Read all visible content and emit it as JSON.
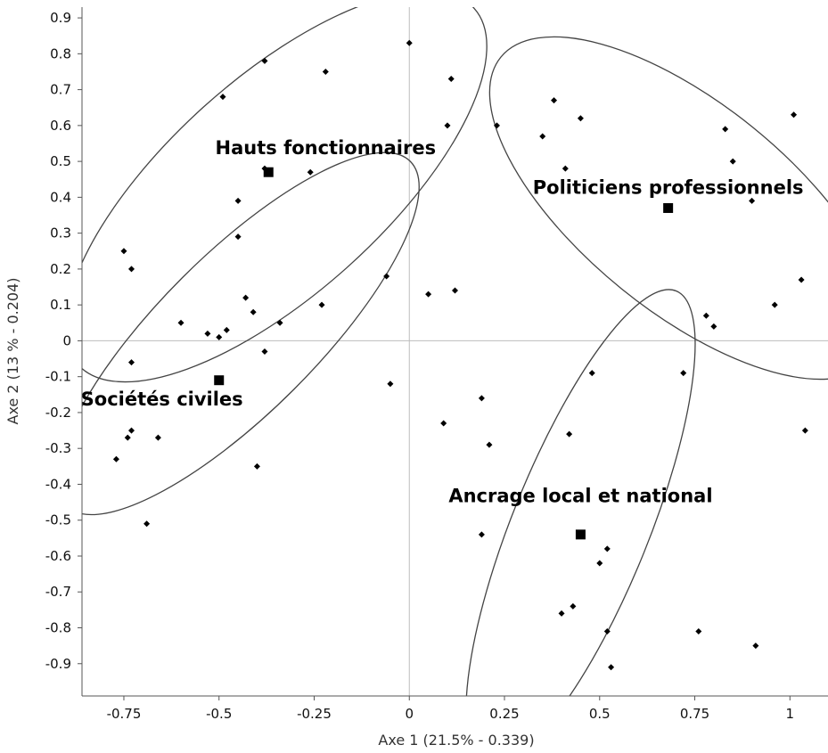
{
  "chart_data": {
    "type": "scatter",
    "title": "",
    "xlabel": "Axe 1 (21.5% - 0.339)",
    "ylabel": "Axe 2 (13 % - 0.204)",
    "xlim": [
      -0.86,
      1.1
    ],
    "ylim": [
      -0.99,
      0.93
    ],
    "grid": false,
    "zero_lines": true,
    "xticks": [
      {
        "v": -0.75,
        "label": "-0.75"
      },
      {
        "v": -0.5,
        "label": "-0.5"
      },
      {
        "v": -0.25,
        "label": "-0.25"
      },
      {
        "v": 0,
        "label": "0"
      },
      {
        "v": 0.25,
        "label": "0.25"
      },
      {
        "v": 0.5,
        "label": "0.5"
      },
      {
        "v": 0.75,
        "label": "0.75"
      },
      {
        "v": 1,
        "label": "1"
      }
    ],
    "yticks": [
      {
        "v": 0.9,
        "label": "0.9"
      },
      {
        "v": 0.8,
        "label": "0.8"
      },
      {
        "v": 0.7,
        "label": "0.7"
      },
      {
        "v": 0.6,
        "label": "0.6"
      },
      {
        "v": 0.5,
        "label": "0.5"
      },
      {
        "v": 0.4,
        "label": "0.4"
      },
      {
        "v": 0.3,
        "label": "0.3"
      },
      {
        "v": 0.2,
        "label": "0.2"
      },
      {
        "v": 0.1,
        "label": "0.1"
      },
      {
        "v": 0,
        "label": "0"
      },
      {
        "v": -0.1,
        "label": "-0.1"
      },
      {
        "v": -0.2,
        "label": "-0.2"
      },
      {
        "v": -0.3,
        "label": "-0.3"
      },
      {
        "v": -0.4,
        "label": "-0.4"
      },
      {
        "v": -0.5,
        "label": "-0.5"
      },
      {
        "v": -0.6,
        "label": "-0.6"
      },
      {
        "v": -0.7,
        "label": "-0.7"
      },
      {
        "v": -0.8,
        "label": "-0.8"
      },
      {
        "v": -0.9,
        "label": "-0.9"
      }
    ],
    "points": [
      [
        0.0,
        0.83
      ],
      [
        0.11,
        0.73
      ],
      [
        -0.38,
        0.78
      ],
      [
        -0.22,
        0.75
      ],
      [
        -0.49,
        0.68
      ],
      [
        0.1,
        0.6
      ],
      [
        0.23,
        0.6
      ],
      [
        0.38,
        0.67
      ],
      [
        0.45,
        0.62
      ],
      [
        0.35,
        0.57
      ],
      [
        0.41,
        0.48
      ],
      [
        0.83,
        0.59
      ],
      [
        1.01,
        0.63
      ],
      [
        0.85,
        0.5
      ],
      [
        0.9,
        0.39
      ],
      [
        -0.26,
        0.47
      ],
      [
        -0.38,
        0.48
      ],
      [
        -0.45,
        0.39
      ],
      [
        -0.45,
        0.29
      ],
      [
        -0.75,
        0.25
      ],
      [
        -0.73,
        0.2
      ],
      [
        -0.43,
        0.12
      ],
      [
        -0.41,
        0.08
      ],
      [
        -0.6,
        0.05
      ],
      [
        -0.53,
        0.02
      ],
      [
        -0.5,
        0.01
      ],
      [
        -0.48,
        0.03
      ],
      [
        -0.34,
        0.05
      ],
      [
        -0.23,
        0.1
      ],
      [
        -0.06,
        0.18
      ],
      [
        0.05,
        0.13
      ],
      [
        0.12,
        0.14
      ],
      [
        -0.38,
        -0.03
      ],
      [
        -0.73,
        -0.06
      ],
      [
        -0.05,
        -0.12
      ],
      [
        -0.73,
        -0.25
      ],
      [
        -0.74,
        -0.27
      ],
      [
        -0.66,
        -0.27
      ],
      [
        -0.77,
        -0.33
      ],
      [
        -0.69,
        -0.51
      ],
      [
        -0.4,
        -0.35
      ],
      [
        1.03,
        0.17
      ],
      [
        0.96,
        0.1
      ],
      [
        0.78,
        0.07
      ],
      [
        0.8,
        0.04
      ],
      [
        0.72,
        -0.09
      ],
      [
        0.48,
        -0.09
      ],
      [
        1.04,
        -0.25
      ],
      [
        0.19,
        -0.16
      ],
      [
        0.09,
        -0.23
      ],
      [
        0.21,
        -0.29
      ],
      [
        0.42,
        -0.26
      ],
      [
        0.19,
        -0.54
      ],
      [
        0.52,
        -0.58
      ],
      [
        0.5,
        -0.62
      ],
      [
        0.4,
        -0.76
      ],
      [
        0.43,
        -0.74
      ],
      [
        0.52,
        -0.81
      ],
      [
        0.76,
        -0.81
      ],
      [
        0.91,
        -0.85
      ],
      [
        0.53,
        -0.91
      ]
    ],
    "centroids": [
      {
        "name": "Hauts fonctionnaires",
        "x": -0.37,
        "y": 0.47,
        "label_x": -0.22,
        "label_y": 0.52
      },
      {
        "name": "Politiciens professionnels",
        "x": 0.68,
        "y": 0.37,
        "label_x": 0.68,
        "label_y": 0.41
      },
      {
        "name": "Sociétés civiles",
        "x": -0.5,
        "y": -0.11,
        "label_x": -0.65,
        "label_y": -0.18
      },
      {
        "name": "Ancrage local et national",
        "x": 0.45,
        "y": -0.54,
        "label_x": 0.45,
        "label_y": -0.45
      }
    ],
    "ellipses": [
      {
        "name": "Hauts fonctionnaires",
        "cx": -0.35,
        "cy": 0.43,
        "rx": 0.7,
        "ry": 0.3,
        "angle_deg": -42
      },
      {
        "name": "Politiciens professionnels",
        "cx": 0.73,
        "cy": 0.37,
        "rx": 0.63,
        "ry": 0.29,
        "angle_deg": 39
      },
      {
        "name": "Sociétés civiles",
        "cx": -0.45,
        "cy": 0.02,
        "rx": 0.64,
        "ry": 0.22,
        "angle_deg": -45
      },
      {
        "name": "Ancrage local et national",
        "cx": 0.45,
        "cy": -0.52,
        "rx": 0.67,
        "ry": 0.19,
        "angle_deg": -68
      }
    ]
  }
}
